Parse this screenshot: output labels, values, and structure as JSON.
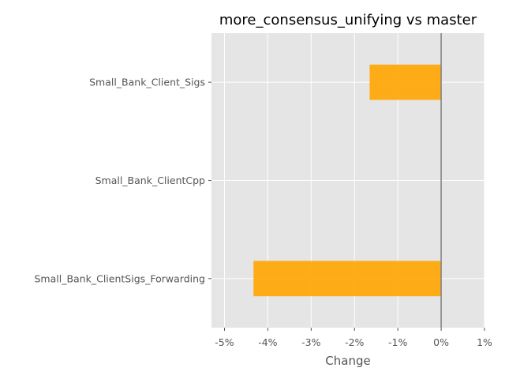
{
  "chart_data": {
    "type": "bar",
    "orientation": "horizontal",
    "title": "more_consensus_unifying vs master",
    "xlabel": "Change",
    "ylabel": "",
    "categories": [
      "Small_Bank_Client_Sigs",
      "Small_Bank_ClientCpp",
      "Small_Bank_ClientSigs_Forwarding"
    ],
    "values": [
      -1.65,
      0.0,
      -4.33
    ],
    "xlim": [
      -5.3,
      1.0
    ],
    "xticks": [
      -5,
      -4,
      -3,
      -2,
      -1,
      0,
      1
    ],
    "xtick_labels": [
      "-5%",
      "-4%",
      "-3%",
      "-2%",
      "-1%",
      "0%",
      "1%"
    ],
    "reference_line": 0,
    "grid": true,
    "bar_color": "#ffa500",
    "background_color": "#e5e5e5",
    "grid_color": "#ffffff",
    "reference_line_color": "#808080"
  }
}
